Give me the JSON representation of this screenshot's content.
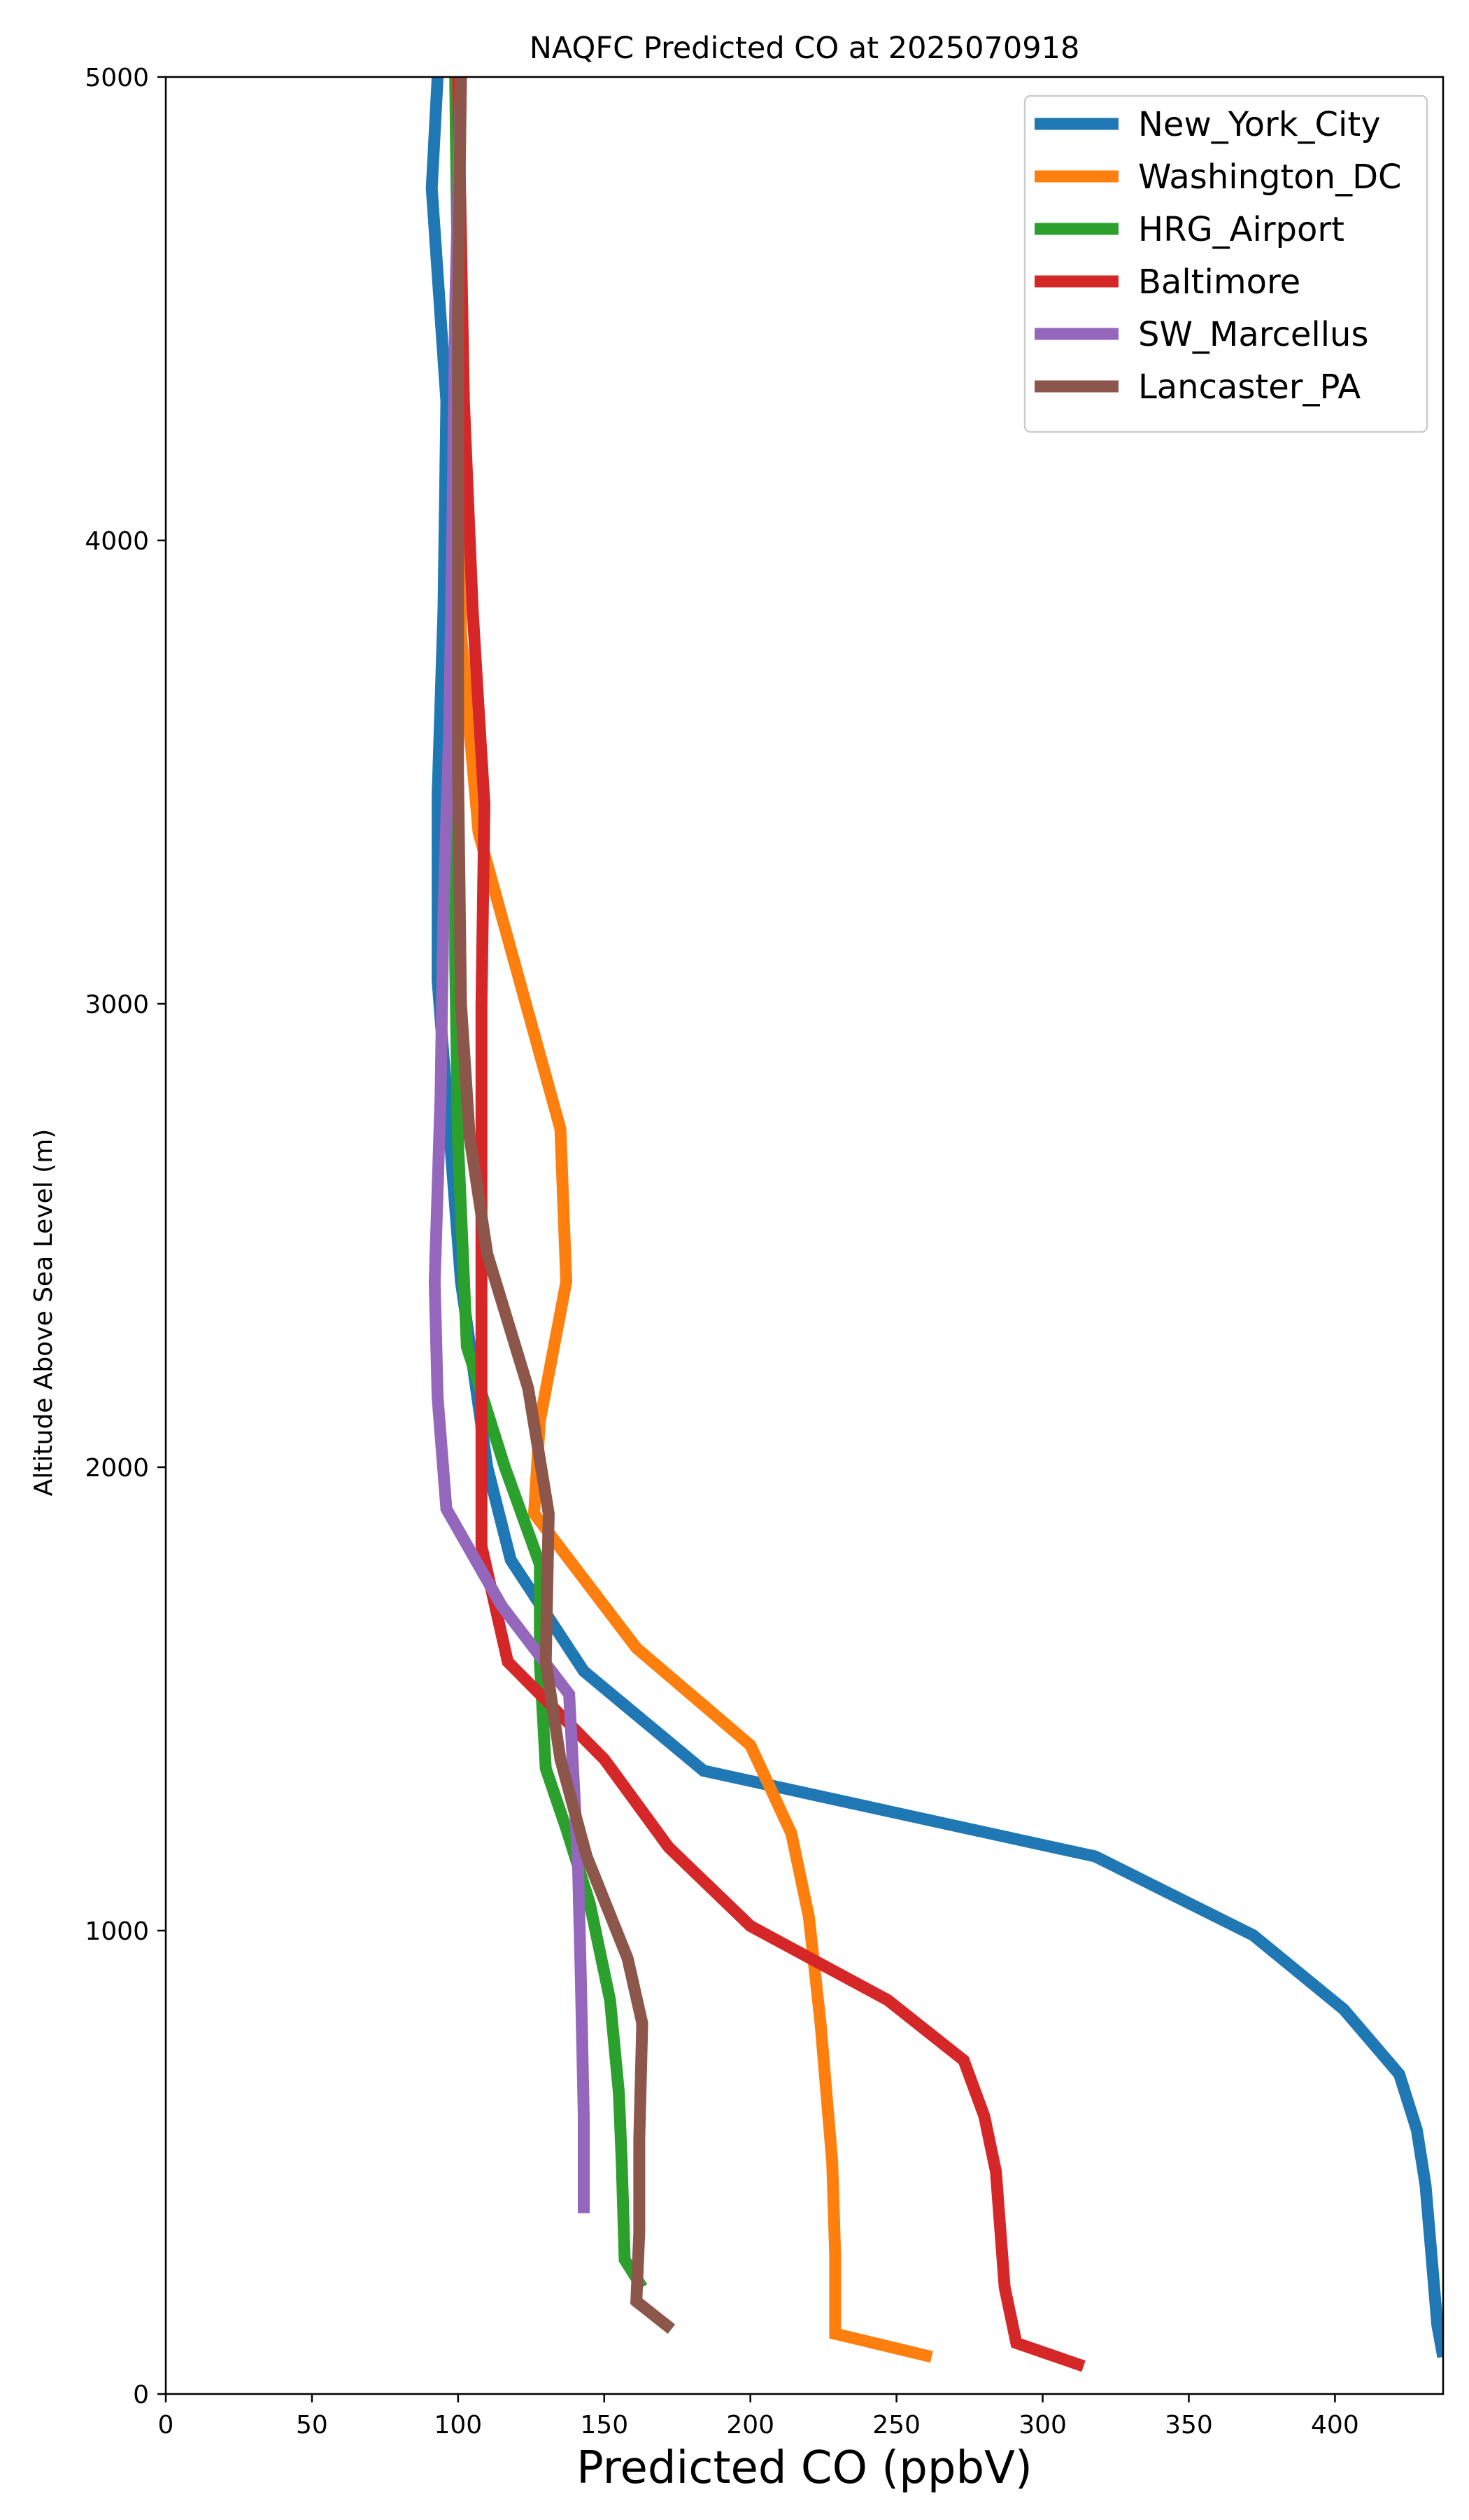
{
  "chart_data": {
    "type": "line",
    "title": "NAQFC Predicted CO at 2025070918",
    "xlabel": "Predicted CO (ppbV)",
    "ylabel": "Altitude Above Sea Level (m)",
    "xlim": [
      0,
      437
    ],
    "ylim": [
      0,
      5000
    ],
    "xticks": [
      0,
      50,
      100,
      150,
      200,
      250,
      300,
      350,
      400
    ],
    "yticks": [
      0,
      1000,
      2000,
      3000,
      4000,
      5000
    ],
    "grid": false,
    "legend_position": "top-right",
    "series": [
      {
        "name": "New_York_City",
        "color": "#1f77b4",
        "points": [
          [
            437,
            80
          ],
          [
            435,
            150
          ],
          [
            433,
            300
          ],
          [
            431,
            450
          ],
          [
            428,
            570
          ],
          [
            422,
            690
          ],
          [
            403,
            830
          ],
          [
            372,
            990
          ],
          [
            318,
            1160
          ],
          [
            184,
            1345
          ],
          [
            143,
            1560
          ],
          [
            118,
            1800
          ],
          [
            110,
            2000
          ],
          [
            101,
            2400
          ],
          [
            93,
            3050
          ],
          [
            93,
            3450
          ],
          [
            95,
            3850
          ],
          [
            96,
            4300
          ],
          [
            91,
            4760
          ],
          [
            93,
            5000
          ]
        ]
      },
      {
        "name": "Washington_DC",
        "color": "#ff7f0e",
        "points": [
          [
            262,
            80
          ],
          [
            229,
            130
          ],
          [
            229,
            300
          ],
          [
            228,
            500
          ],
          [
            224,
            800
          ],
          [
            220,
            1030
          ],
          [
            214,
            1210
          ],
          [
            200,
            1400
          ],
          [
            161,
            1610
          ],
          [
            126,
            1900
          ],
          [
            128,
            2100
          ],
          [
            137,
            2400
          ],
          [
            135,
            2730
          ],
          [
            107,
            3370
          ],
          [
            101,
            3800
          ],
          [
            101,
            4300
          ],
          [
            100,
            5000
          ]
        ]
      },
      {
        "name": "HRG_Airport",
        "color": "#2ca02c",
        "points": [
          [
            163,
            230
          ],
          [
            157,
            290
          ],
          [
            156,
            500
          ],
          [
            155,
            650
          ],
          [
            152,
            850
          ],
          [
            145,
            1060
          ],
          [
            137,
            1220
          ],
          [
            130,
            1350
          ],
          [
            128,
            1580
          ],
          [
            128,
            1790
          ],
          [
            116,
            2000
          ],
          [
            103,
            2260
          ],
          [
            100,
            2700
          ],
          [
            99,
            3100
          ],
          [
            99,
            3500
          ],
          [
            100,
            4000
          ],
          [
            100,
            4500
          ],
          [
            99,
            5000
          ]
        ]
      },
      {
        "name": "Baltimore",
        "color": "#d62728",
        "points": [
          [
            314,
            60
          ],
          [
            291,
            110
          ],
          [
            287,
            230
          ],
          [
            284,
            480
          ],
          [
            280,
            600
          ],
          [
            273,
            720
          ],
          [
            247,
            850
          ],
          [
            200,
            1010
          ],
          [
            172,
            1180
          ],
          [
            150,
            1370
          ],
          [
            117,
            1580
          ],
          [
            108,
            1830
          ],
          [
            108,
            2500
          ],
          [
            108,
            3000
          ],
          [
            109,
            3430
          ],
          [
            105,
            3850
          ],
          [
            102,
            4300
          ],
          [
            100,
            5000
          ]
        ]
      },
      {
        "name": "SW_Marcellus",
        "color": "#9467bd",
        "points": [
          [
            143,
            390
          ],
          [
            143,
            600
          ],
          [
            142,
            900
          ],
          [
            141,
            1150
          ],
          [
            138,
            1510
          ],
          [
            115,
            1700
          ],
          [
            96,
            1910
          ],
          [
            93,
            2150
          ],
          [
            92,
            2400
          ],
          [
            94,
            2800
          ],
          [
            95,
            3200
          ],
          [
            97,
            3600
          ],
          [
            98,
            4000
          ],
          [
            99,
            4500
          ],
          [
            101,
            5000
          ]
        ]
      },
      {
        "name": "Lancaster_PA",
        "color": "#8c564b",
        "points": [
          [
            173,
            140
          ],
          [
            161,
            200
          ],
          [
            162,
            350
          ],
          [
            162,
            550
          ],
          [
            163,
            800
          ],
          [
            158,
            940
          ],
          [
            144,
            1160
          ],
          [
            135,
            1370
          ],
          [
            130,
            1580
          ],
          [
            131,
            1900
          ],
          [
            124,
            2170
          ],
          [
            110,
            2460
          ],
          [
            104,
            2710
          ],
          [
            101,
            3000
          ],
          [
            100,
            3500
          ],
          [
            100,
            4000
          ],
          [
            100,
            4500
          ],
          [
            101,
            5000
          ]
        ]
      }
    ]
  }
}
